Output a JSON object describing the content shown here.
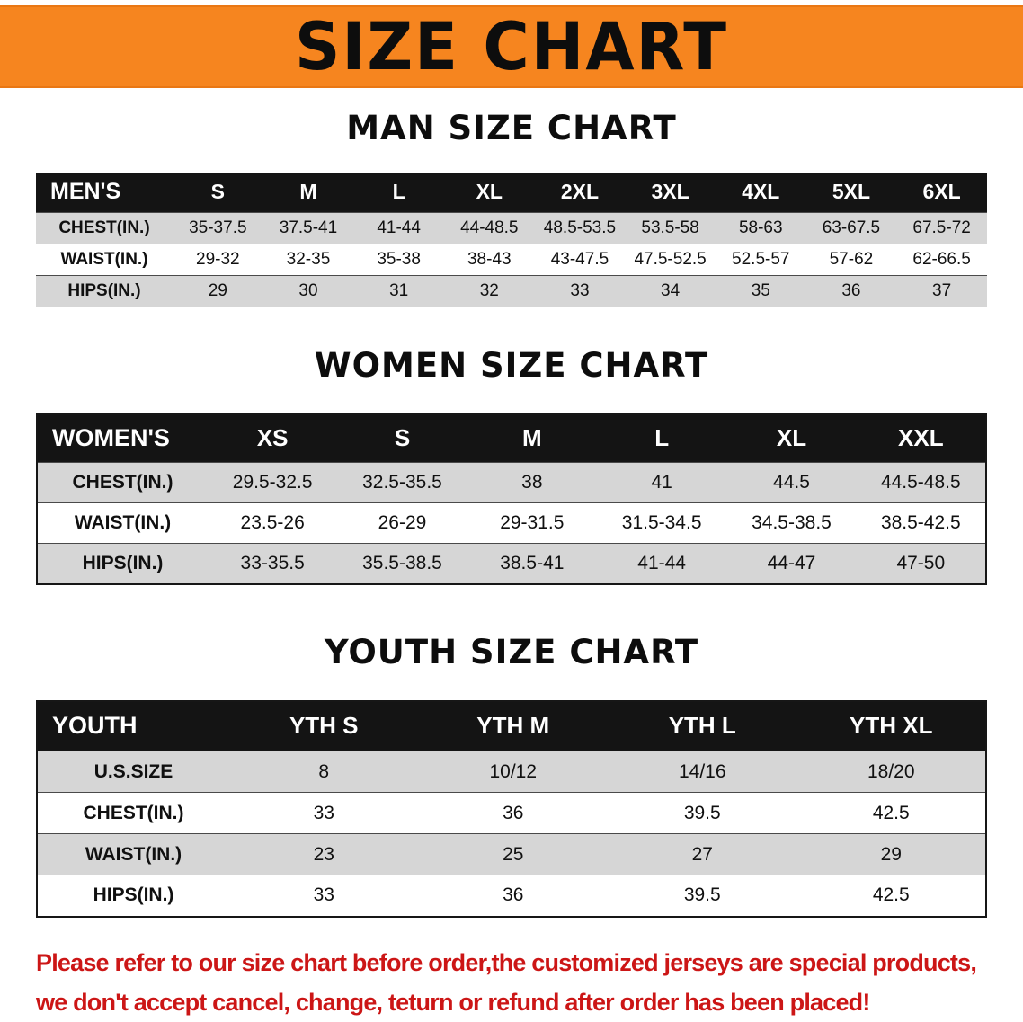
{
  "banner": {
    "title": "SIZE CHART"
  },
  "colors": {
    "banner_bg": "#f6851f",
    "table_header_bg": "#141414",
    "shaded_row_bg": "#d6d6d6",
    "notice_text": "#cc1616"
  },
  "sections": {
    "men": {
      "title": "MAN SIZE CHART",
      "header": [
        "MEN'S",
        "S",
        "M",
        "L",
        "XL",
        "2XL",
        "3XL",
        "4XL",
        "5XL",
        "6XL"
      ],
      "rows": [
        {
          "label": "CHEST(IN.)",
          "cells": [
            "35-37.5",
            "37.5-41",
            "41-44",
            "44-48.5",
            "48.5-53.5",
            "53.5-58",
            "58-63",
            "63-67.5",
            "67.5-72"
          ]
        },
        {
          "label": "WAIST(IN.)",
          "cells": [
            "29-32",
            "32-35",
            "35-38",
            "38-43",
            "43-47.5",
            "47.5-52.5",
            "52.5-57",
            "57-62",
            "62-66.5"
          ]
        },
        {
          "label": "HIPS(IN.)",
          "cells": [
            "29",
            "30",
            "31",
            "32",
            "33",
            "34",
            "35",
            "36",
            "37"
          ]
        }
      ]
    },
    "women": {
      "title": "WOMEN SIZE CHART",
      "header": [
        "WOMEN'S",
        "XS",
        "S",
        "M",
        "L",
        "XL",
        "XXL"
      ],
      "rows": [
        {
          "label": "CHEST(IN.)",
          "cells": [
            "29.5-32.5",
            "32.5-35.5",
            "38",
            "41",
            "44.5",
            "44.5-48.5"
          ]
        },
        {
          "label": "WAIST(IN.)",
          "cells": [
            "23.5-26",
            "26-29",
            "29-31.5",
            "31.5-34.5",
            "34.5-38.5",
            "38.5-42.5"
          ]
        },
        {
          "label": "HIPS(IN.)",
          "cells": [
            "33-35.5",
            "35.5-38.5",
            "38.5-41",
            "41-44",
            "44-47",
            "47-50"
          ]
        }
      ]
    },
    "youth": {
      "title": "YOUTH SIZE CHART",
      "header": [
        "YOUTH",
        "YTH S",
        "YTH M",
        "YTH L",
        "YTH XL"
      ],
      "rows": [
        {
          "label": "U.S.SIZE",
          "cells": [
            "8",
            "10/12",
            "14/16",
            "18/20"
          ]
        },
        {
          "label": "CHEST(IN.)",
          "cells": [
            "33",
            "36",
            "39.5",
            "42.5"
          ]
        },
        {
          "label": "WAIST(IN.)",
          "cells": [
            "23",
            "25",
            "27",
            "29"
          ]
        },
        {
          "label": "HIPS(IN.)",
          "cells": [
            "33",
            "36",
            "39.5",
            "42.5"
          ]
        }
      ]
    }
  },
  "footer": {
    "line1": "Please refer to our size chart before order,the customized jerseys are special products,",
    "line2": "we don't accept cancel, change, teturn or refund after order has been placed!"
  }
}
